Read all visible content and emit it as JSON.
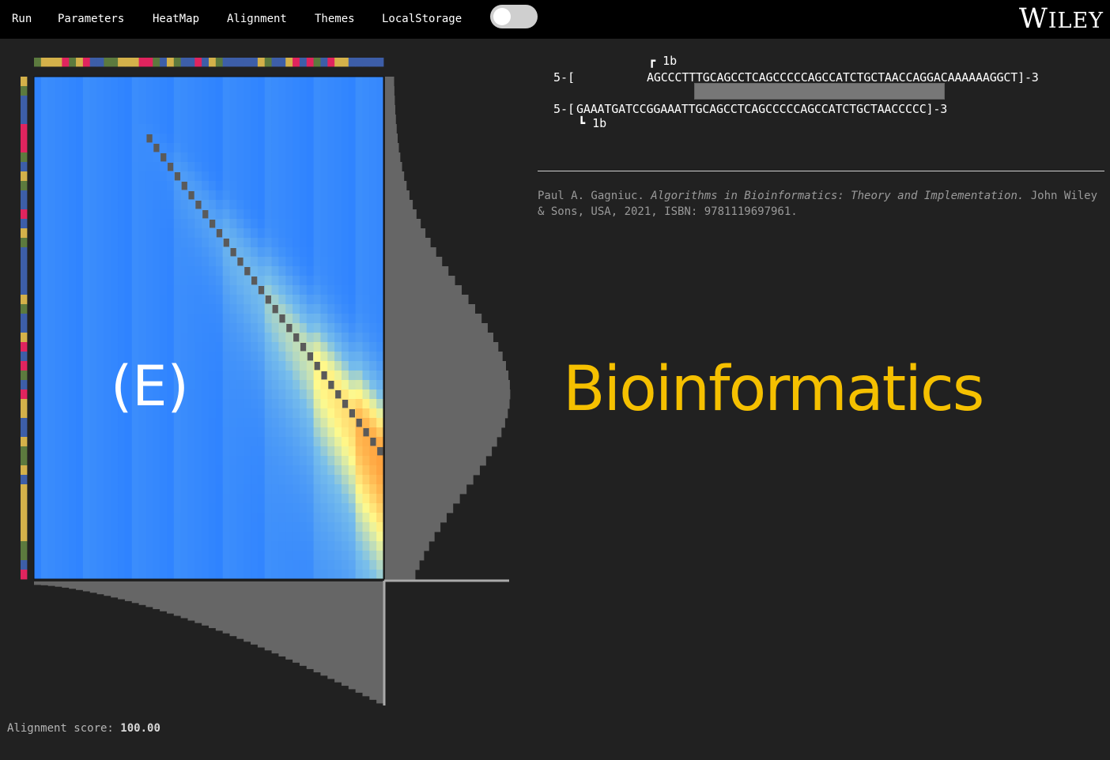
{
  "menu": {
    "items": [
      {
        "label": "Run"
      },
      {
        "label": "Parameters"
      },
      {
        "label": "HeatMap"
      },
      {
        "label": "Alignment"
      },
      {
        "label": "Themes"
      },
      {
        "label": "LocalStorage"
      }
    ],
    "toggle_on": false
  },
  "logo": {
    "text_big": "W",
    "text_rest": "ILEY"
  },
  "alignment": {
    "seq1_prefix": "5-[",
    "seq1_body": "AGCCCTTTGCAGCCTCAGCCCCCAGCCATCTGCTAACCAGGACAAAAAAGGCT]-3",
    "seq2_prefix": "5-[",
    "seq2_body": "GAAATGATCCGGAAATTGCAGCCTCAGCCCCCAGCCATCTGCTAACCCCC]-3",
    "marker_top": "1b",
    "marker_bottom": "1b"
  },
  "citation": {
    "authors": "Paul A. Gagniuc.",
    "title": "Algorithms in Bioinformatics: Theory and Implementation.",
    "rest": "John Wiley & Sons, USA, 2021, ISBN: 9781119697961."
  },
  "brand": "Bioinformatics",
  "panel_label": "(E)",
  "score": {
    "label": "Alignment score:",
    "value": "100.00"
  },
  "colors": {
    "A": "#d4b14a",
    "C": "#3d5ea8",
    "G": "#5c7a3e",
    "T": "#e0245e",
    "heatmap_low": "#2f83ff",
    "heatmap_high": "#ff2020",
    "path": "#5a5a5a",
    "profile": "#666666",
    "brand": "#f5c000"
  }
}
